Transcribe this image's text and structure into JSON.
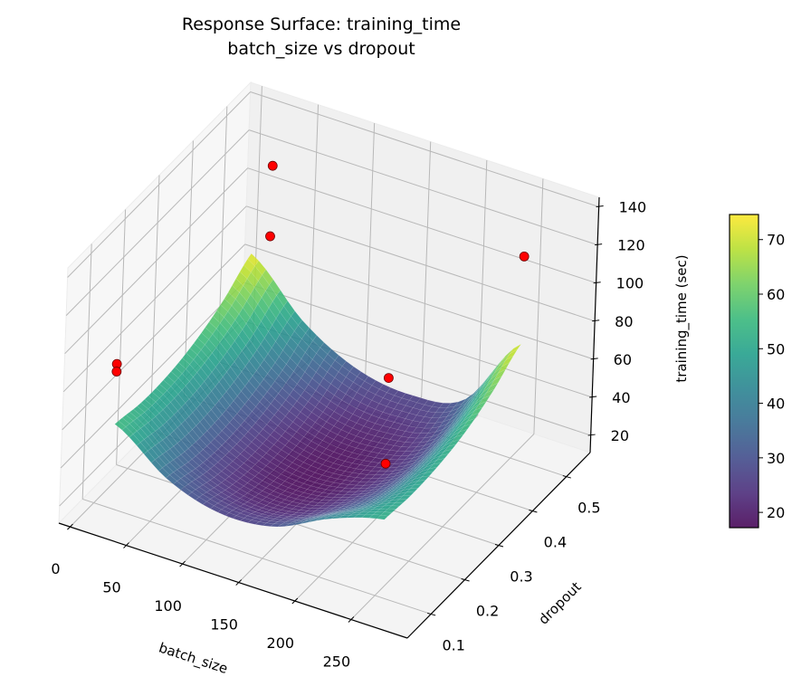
{
  "chart_data": {
    "type": "surface3d",
    "title": "Response Surface: training_time",
    "subtitle": "batch_size vs dropout",
    "xlabel": "batch_size",
    "ylabel": "dropout",
    "zlabel": "training_time (sec)",
    "xlim": [
      -10,
      300
    ],
    "ylim": [
      0.03,
      0.57
    ],
    "zlim": [
      11,
      145
    ],
    "x_ticks": [
      "0",
      "50",
      "100",
      "150",
      "200",
      "250"
    ],
    "y_ticks": [
      "0.1",
      "0.2",
      "0.3",
      "0.4",
      "0.5"
    ],
    "z_ticks": [
      "20",
      "40",
      "60",
      "80",
      "100",
      "120",
      "140"
    ],
    "grid": true,
    "colormap": "viridis",
    "surface": {
      "x": [
        16,
        64,
        112,
        160,
        208,
        256
      ],
      "y": [
        0.1,
        0.18,
        0.26,
        0.34,
        0.42,
        0.5
      ],
      "z": [
        [
          55.4,
          52.5,
          52.8,
          56.2,
          62.9,
          72.8
        ],
        [
          35.8,
          31.5,
          30.4,
          32.6,
          37.9,
          46.4
        ],
        [
          27.1,
          21.5,
          19.1,
          19.9,
          23.9,
          31.1
        ],
        [
          29.6,
          22.6,
          18.9,
          18.3,
          21.0,
          26.8
        ],
        [
          43.1,
          34.8,
          29.7,
          27.7,
          29.0,
          33.5
        ],
        [
          52.0,
          50.5,
          51.5,
          55.0,
          62.0,
          72.0
        ]
      ]
    },
    "observations": {
      "color": "#ff0000",
      "points": [
        {
          "x": 32,
          "y": 0.5,
          "z": 122
        },
        {
          "x": 32,
          "y": 0.5,
          "z": 85
        },
        {
          "x": 256,
          "y": 0.5,
          "z": 118
        },
        {
          "x": 16,
          "y": 0.1,
          "z": 87
        },
        {
          "x": 16,
          "y": 0.1,
          "z": 83
        },
        {
          "x": 198,
          "y": 0.3,
          "z": 79
        },
        {
          "x": 198,
          "y": 0.3,
          "z": 34
        }
      ]
    },
    "colorbar": {
      "range": [
        17.2,
        74.6
      ],
      "ticks": [
        "20",
        "30",
        "40",
        "50",
        "60",
        "70"
      ]
    }
  }
}
